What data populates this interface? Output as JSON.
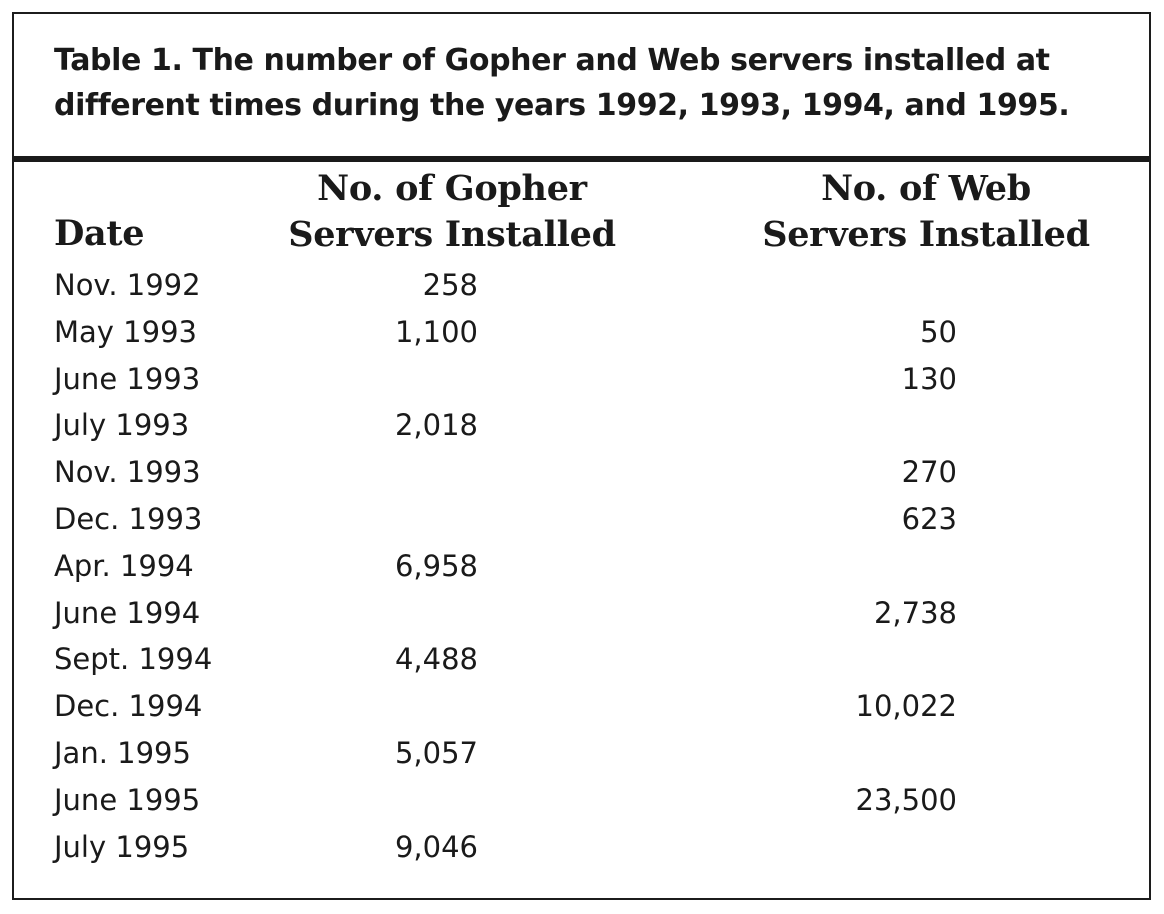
{
  "caption": {
    "line1": "Table 1. The number of Gopher and Web servers installed at",
    "line2": "different times during the years 1992, 1993, 1994, and 1995."
  },
  "headers": {
    "date": "Date",
    "gopher_line1": "No. of Gopher",
    "gopher_line2": "Servers Installed",
    "web_line1": "No. of Web",
    "web_line2": "Servers Installed"
  },
  "rows": [
    {
      "date": "Nov. 1992",
      "gopher": "258",
      "web": ""
    },
    {
      "date": "May 1993",
      "gopher": "1,100",
      "web": "50"
    },
    {
      "date": "June 1993",
      "gopher": "",
      "web": "130"
    },
    {
      "date": "July 1993",
      "gopher": "2,018",
      "web": ""
    },
    {
      "date": "Nov. 1993",
      "gopher": "",
      "web": "270"
    },
    {
      "date": "Dec. 1993",
      "gopher": "",
      "web": "623"
    },
    {
      "date": "Apr. 1994",
      "gopher": "6,958",
      "web": ""
    },
    {
      "date": "June 1994",
      "gopher": "",
      "web": "2,738"
    },
    {
      "date": "Sept. 1994",
      "gopher": "4,488",
      "web": ""
    },
    {
      "date": "Dec. 1994",
      "gopher": "",
      "web": "10,022"
    },
    {
      "date": "Jan. 1995",
      "gopher": "5,057",
      "web": ""
    },
    {
      "date": "June 1995",
      "gopher": "",
      "web": "23,500"
    },
    {
      "date": "July 1995",
      "gopher": "9,046",
      "web": ""
    }
  ]
}
